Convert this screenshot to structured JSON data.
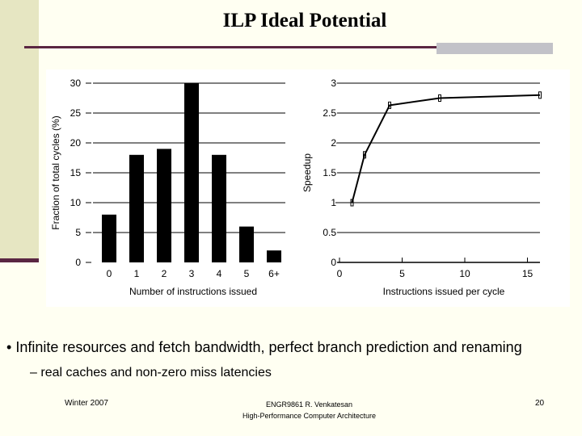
{
  "title": "ILP Ideal Potential",
  "bullets": {
    "main": "Infinite resources and fetch bandwidth, perfect branch prediction and renaming",
    "sub": "real caches and non-zero miss latencies",
    "bullet_marker": "•",
    "sub_marker": "–"
  },
  "footer": {
    "date": "Winter 2007",
    "course": "ENGR9861   R. Venkatesan",
    "course_title": "High-Performance Computer Architecture",
    "page": "20"
  },
  "chart_data": [
    {
      "type": "bar",
      "categories": [
        "0",
        "1",
        "2",
        "3",
        "4",
        "5",
        "6+"
      ],
      "values": [
        8,
        18,
        19,
        30,
        18,
        6,
        2
      ],
      "xlabel": "Number of instructions issued",
      "ylabel": "Fraction of total cycles (%)",
      "ylim": [
        0,
        30
      ],
      "yticks": [
        0,
        5,
        10,
        15,
        20,
        25,
        30
      ],
      "grid": true,
      "color": "#000000"
    },
    {
      "type": "line",
      "x": [
        1,
        2,
        4,
        8,
        16
      ],
      "y": [
        1.0,
        1.8,
        2.63,
        2.75,
        2.8
      ],
      "xlabel": "Instructions issued per cycle",
      "ylabel": "Speedup",
      "xlim": [
        0,
        16
      ],
      "ylim": [
        0,
        3
      ],
      "xticks": [
        0,
        5,
        10,
        15
      ],
      "yticks": [
        "0",
        "0.5",
        "1",
        "1.5",
        "2",
        "2.5",
        "3"
      ],
      "grid": true,
      "color": "#000000"
    }
  ]
}
